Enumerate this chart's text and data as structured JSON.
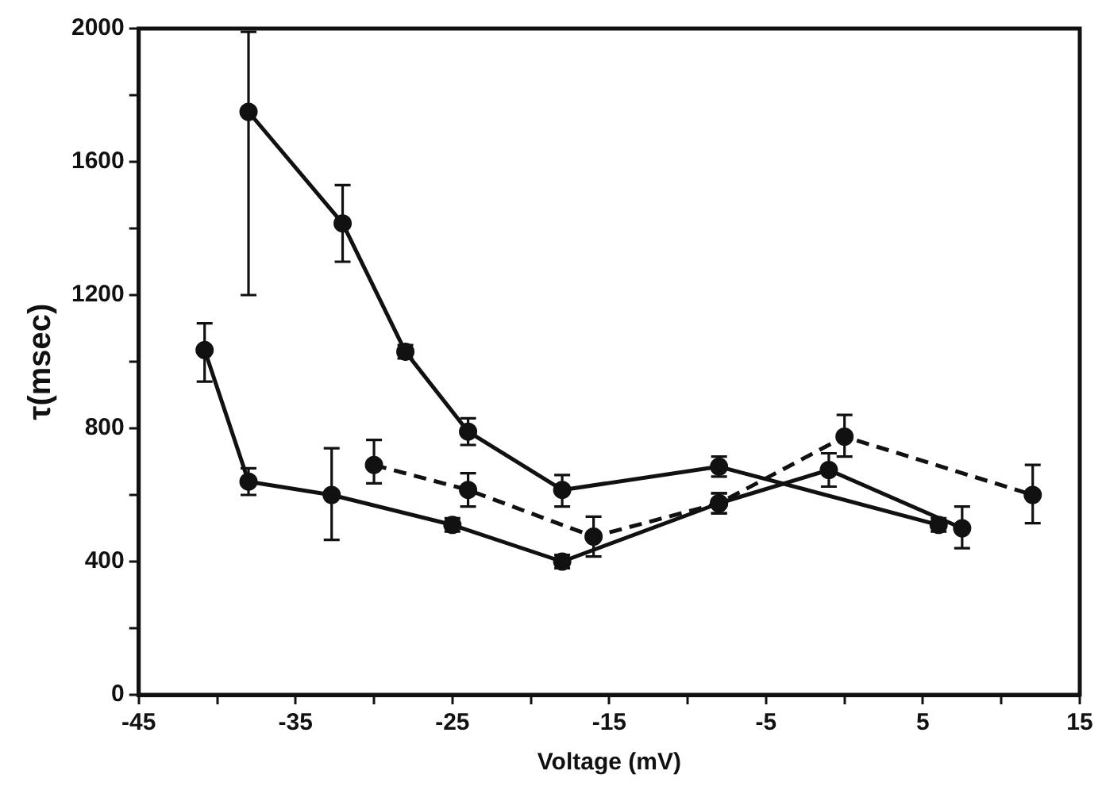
{
  "chart_data": {
    "type": "line",
    "xlabel": "Voltage (mV)",
    "ylabel": "τ(msec)",
    "xlim": [
      -45,
      15
    ],
    "xticks": [
      -45,
      {
        "value": -40,
        "label": null
      },
      -35,
      {
        "value": -30,
        "label": null
      },
      -25,
      {
        "value": -20,
        "label": null
      },
      -15,
      {
        "value": -10,
        "label": null
      },
      -5,
      {
        "value": 0,
        "label": null
      },
      5,
      {
        "value": 10,
        "label": null
      },
      15
    ],
    "ylim": [
      0,
      2000
    ],
    "yticks": [
      0,
      {
        "value": 200,
        "label": null
      },
      400,
      {
        "value": 600,
        "label": null
      },
      800,
      {
        "value": 1000,
        "label": null
      },
      1200,
      {
        "value": 1400,
        "label": null
      },
      1600,
      {
        "value": 1800,
        "label": null
      },
      2000
    ],
    "grid": false,
    "legend": false,
    "marker": "circle",
    "series": [
      {
        "color": "#111111",
        "line_style": "solid",
        "x": [
          -38,
          -32,
          -28,
          -24,
          -18,
          -8,
          6
        ],
        "values": [
          1750,
          1415,
          1030,
          790,
          615,
          685,
          510
        ],
        "errors": [
          [
            1200,
            1990
          ],
          [
            1300,
            1530
          ],
          20,
          40,
          [
            565,
            660
          ],
          30,
          20
        ]
      },
      {
        "color": "#111111",
        "line_style": "solid",
        "x": [
          -40.8,
          -38,
          -32.7,
          -25,
          -18,
          -8,
          -1,
          7.5
        ],
        "values": [
          1035,
          640,
          600,
          510,
          400,
          575,
          675,
          500
        ],
        "errors": [
          [
            940,
            1115
          ],
          40,
          [
            465,
            740
          ],
          20,
          20,
          30,
          [
            625,
            725
          ],
          [
            440,
            565
          ]
        ]
      },
      {
        "color": "#111111",
        "line_style": "dashed",
        "x": [
          -30,
          -24,
          -16,
          -8,
          0,
          12
        ],
        "values": [
          690,
          615,
          475,
          575,
          775,
          600
        ],
        "errors": [
          [
            635,
            765
          ],
          50,
          [
            415,
            535
          ],
          30,
          [
            715,
            840
          ],
          [
            515,
            690
          ]
        ]
      }
    ]
  }
}
